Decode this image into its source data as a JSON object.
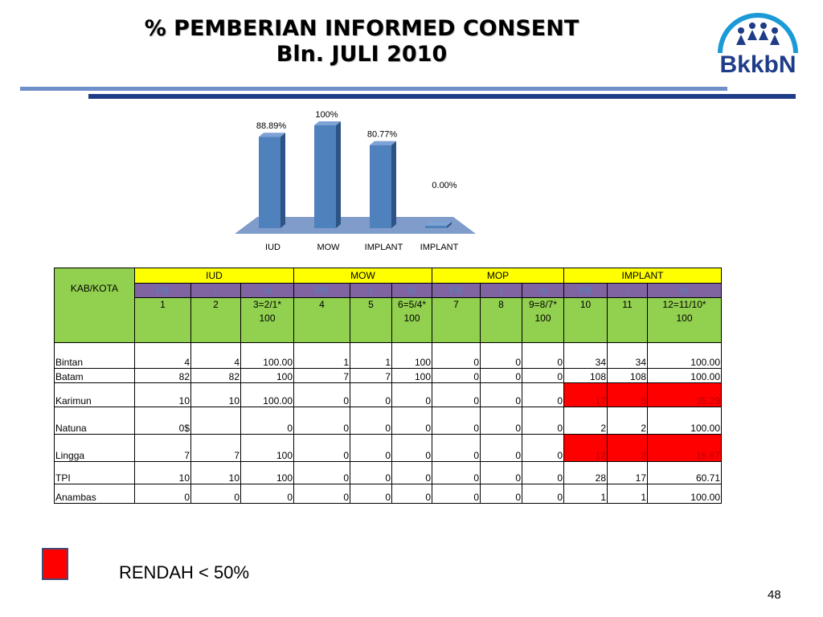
{
  "header": {
    "title_line1": "% PEMBERIAN INFORMED CONSENT",
    "title_line2": "Bln. JULI 2010",
    "logo_text": "BkkbN"
  },
  "chart_data": {
    "type": "bar",
    "categories": [
      "IUD",
      "MOW",
      "IMPLANT",
      "IMPLANT"
    ],
    "values": [
      88.89,
      100,
      80.77,
      0.0
    ],
    "data_labels": [
      "88.89%",
      "100%",
      "80.77%",
      "0.00%"
    ],
    "ylim": [
      0,
      100
    ],
    "grid": false,
    "legend": "none",
    "colors": {
      "bar_front": "#4f81bd",
      "bar_side": "#2e5486",
      "bar_top": "#7da2d6",
      "floor": "#7f9ccb"
    }
  },
  "table": {
    "kab_header": "KAB/KOTA",
    "groups": [
      "IUD",
      "MOW",
      "MOP",
      "IMPLANT"
    ],
    "sub_headers": [
      "PB",
      "I",
      "%",
      "PB",
      "I",
      "%",
      "PB",
      "I",
      "%",
      "PB",
      "I",
      "%"
    ],
    "col_numbers": [
      [
        "1",
        ""
      ],
      [
        "2",
        ""
      ],
      [
        "3=2/1*",
        "100"
      ],
      [
        "4",
        ""
      ],
      [
        "5",
        ""
      ],
      [
        "6=5/4*",
        "100"
      ],
      [
        "7",
        ""
      ],
      [
        "8",
        ""
      ],
      [
        "9=8/7*",
        "100"
      ],
      [
        "10",
        ""
      ],
      [
        "11",
        ""
      ],
      [
        "12=11/10*",
        "100"
      ]
    ],
    "rows": [
      {
        "name": "Bintan",
        "cells": [
          "4",
          "4",
          "100.00",
          "1",
          "1",
          "100",
          "0",
          "0",
          "0",
          "34",
          "34",
          "100.00"
        ]
      },
      {
        "name": "Batam",
        "cells": [
          "82",
          "82",
          "100",
          "7",
          "7",
          "100",
          "0",
          "0",
          "0",
          "108",
          "108",
          "100.00"
        ]
      },
      {
        "name": "Karimun",
        "cells": [
          "10",
          "10",
          "100.00",
          "0",
          "0",
          "0",
          "0",
          "0",
          "0",
          "17",
          "6",
          "35.29"
        ]
      },
      {
        "name": "Natuna",
        "cells": [
          "0$",
          "",
          "0",
          "0",
          "0",
          "0",
          "0",
          "0",
          "0",
          "2",
          "2",
          "100.00"
        ]
      },
      {
        "name": "Lingga",
        "cells": [
          "7",
          "7",
          "100",
          "0",
          "0",
          "0",
          "0",
          "0",
          "0",
          "12",
          "2",
          "16.67"
        ]
      },
      {
        "name": "TPI",
        "cells": [
          "10",
          "10",
          "100",
          "0",
          "0",
          "0",
          "0",
          "0",
          "0",
          "28",
          "17",
          "60.71"
        ]
      },
      {
        "name": "Anambas",
        "cells": [
          "0",
          "0",
          "0",
          "0",
          "0",
          "0",
          "0",
          "0",
          "0",
          "1",
          "1",
          "100.00"
        ]
      }
    ]
  },
  "legend": {
    "label": "RENDAH < 50%",
    "color": "#ff0000"
  },
  "footer": {
    "page_number": "48"
  }
}
